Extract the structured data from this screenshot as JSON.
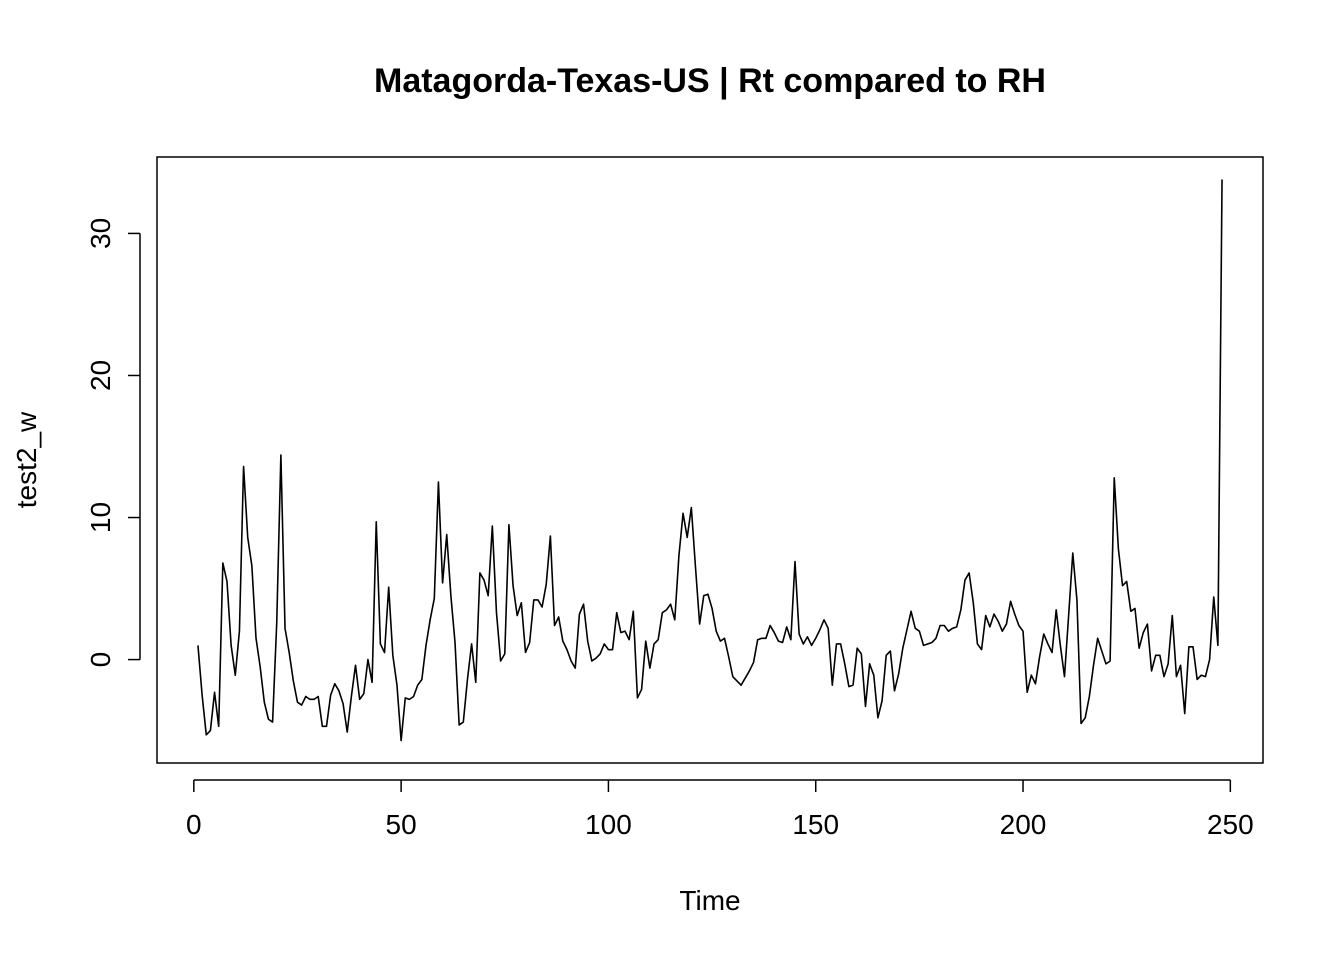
{
  "chart_data": {
    "type": "line",
    "title": "Matagorda-Texas-US | Rt compared to RH",
    "x_label": "Time",
    "y_label": "test2_w",
    "x": [
      1,
      2,
      3,
      4,
      5,
      6,
      7,
      8,
      9,
      10,
      11,
      12,
      13,
      14,
      15,
      16,
      17,
      18,
      19,
      20,
      21,
      22,
      23,
      24,
      25,
      26,
      27,
      28,
      29,
      30,
      31,
      32,
      33,
      34,
      35,
      36,
      37,
      38,
      39,
      40,
      41,
      42,
      43,
      44,
      45,
      46,
      47,
      48,
      49,
      50,
      51,
      52,
      53,
      54,
      55,
      56,
      57,
      58,
      59,
      60,
      61,
      62,
      63,
      64,
      65,
      66,
      67,
      68,
      69,
      70,
      71,
      72,
      73,
      74,
      75,
      76,
      77,
      78,
      79,
      80,
      81,
      82,
      83,
      84,
      85,
      86,
      87,
      88,
      89,
      90,
      91,
      92,
      93,
      94,
      95,
      96,
      97,
      98,
      99,
      100,
      101,
      102,
      103,
      104,
      105,
      106,
      107,
      108,
      109,
      110,
      111,
      112,
      113,
      114,
      115,
      116,
      117,
      118,
      119,
      120,
      121,
      122,
      123,
      124,
      125,
      126,
      127,
      128,
      129,
      130,
      131,
      132,
      133,
      134,
      135,
      136,
      137,
      138,
      139,
      140,
      141,
      142,
      143,
      144,
      145,
      146,
      147,
      148,
      149,
      150,
      151,
      152,
      153,
      154,
      155,
      156,
      157,
      158,
      159,
      160,
      161,
      162,
      163,
      164,
      165,
      166,
      167,
      168,
      169,
      170,
      171,
      172,
      173,
      174,
      175,
      176,
      177,
      178,
      179,
      180,
      181,
      182,
      183,
      184,
      185,
      186,
      187,
      188,
      189,
      190,
      191,
      192,
      193,
      194,
      195,
      196,
      197,
      198,
      199,
      200,
      201,
      202,
      203,
      204,
      205,
      206,
      207,
      208,
      209,
      210,
      211,
      212,
      213,
      214,
      215,
      216,
      217,
      218,
      219,
      220,
      221,
      222,
      223,
      224,
      225,
      226,
      227,
      228,
      229,
      230,
      231,
      232,
      233,
      234,
      235,
      236,
      237,
      238,
      239,
      240,
      241,
      242,
      243,
      244,
      245,
      246,
      247,
      248
    ],
    "series": [
      {
        "name": "test2_w",
        "color": "#000000",
        "values": [
          1.0,
          -2.5,
          -5.3,
          -5.0,
          -2.3,
          -4.7,
          6.8,
          5.5,
          1.0,
          -1.1,
          2.0,
          13.6,
          8.6,
          6.6,
          1.5,
          -0.5,
          -3.0,
          -4.2,
          -4.4,
          2.6,
          14.4,
          2.2,
          0.5,
          -1.5,
          -3.0,
          -3.2,
          -2.6,
          -2.8,
          -2.8,
          -2.6,
          -4.7,
          -4.7,
          -2.5,
          -1.7,
          -2.2,
          -3.1,
          -5.1,
          -2.6,
          -0.4,
          -2.8,
          -2.4,
          0.0,
          -1.6,
          9.7,
          1.1,
          0.5,
          5.1,
          0.3,
          -1.8,
          -5.7,
          -2.7,
          -2.8,
          -2.6,
          -1.8,
          -1.4,
          1.0,
          2.8,
          4.3,
          12.5,
          5.4,
          8.8,
          4.5,
          1.2,
          -4.6,
          -4.4,
          -1.4,
          1.1,
          -1.6,
          6.1,
          5.6,
          4.5,
          9.4,
          3.3,
          -0.1,
          0.4,
          9.5,
          5.2,
          3.1,
          4.0,
          0.5,
          1.2,
          4.2,
          4.2,
          3.7,
          5.3,
          8.7,
          2.4,
          3.0,
          1.3,
          0.7,
          -0.1,
          -0.6,
          3.2,
          3.9,
          1.3,
          -0.1,
          0.1,
          0.4,
          1.1,
          0.7,
          0.7,
          3.3,
          1.9,
          2.0,
          1.4,
          3.4,
          -2.7,
          -2.1,
          1.3,
          -0.6,
          1.1,
          1.4,
          3.3,
          3.5,
          3.9,
          2.8,
          7.3,
          10.3,
          8.6,
          10.7,
          6.5,
          2.5,
          4.5,
          4.6,
          3.6,
          2.0,
          1.3,
          1.5,
          0.2,
          -1.2,
          -1.5,
          -1.8,
          -1.3,
          -0.8,
          -0.2,
          1.4,
          1.5,
          1.5,
          2.4,
          1.9,
          1.3,
          1.2,
          2.3,
          1.4,
          6.9,
          1.8,
          1.1,
          1.6,
          1.0,
          1.5,
          2.1,
          2.8,
          2.2,
          -1.8,
          1.1,
          1.1,
          -0.3,
          -1.9,
          -1.8,
          0.8,
          0.4,
          -3.3,
          -0.3,
          -1.1,
          -4.1,
          -2.9,
          0.3,
          0.6,
          -2.2,
          -1.0,
          0.8,
          2.1,
          3.4,
          2.2,
          2.0,
          1.0,
          1.1,
          1.2,
          1.5,
          2.4,
          2.4,
          2.0,
          2.2,
          2.3,
          3.5,
          5.6,
          6.1,
          4.0,
          1.1,
          0.7,
          3.1,
          2.3,
          3.2,
          2.7,
          2.0,
          2.5,
          4.1,
          3.2,
          2.4,
          2.0,
          -2.3,
          -1.1,
          -1.7,
          0.2,
          1.8,
          1.1,
          0.5,
          3.5,
          1.0,
          -1.2,
          3.1,
          7.5,
          4.2,
          -4.5,
          -4.1,
          -2.6,
          -0.4,
          1.5,
          0.6,
          -0.3,
          -0.1,
          12.8,
          7.8,
          5.2,
          5.5,
          3.4,
          3.6,
          0.8,
          1.9,
          2.5,
          -0.8,
          0.3,
          0.3,
          -1.2,
          -0.3,
          3.1,
          -1.2,
          -0.4,
          -3.8,
          0.9,
          0.9,
          -1.4,
          -1.1,
          -1.2,
          0.0,
          4.4,
          1.0,
          33.8
        ]
      }
    ],
    "xlim": [
      -8.88,
      257.88
    ],
    "ylim": [
      -7.28,
      35.38
    ],
    "xticks": [
      0,
      50,
      100,
      150,
      200,
      250
    ],
    "yticks": [
      0,
      10,
      20,
      30
    ]
  }
}
